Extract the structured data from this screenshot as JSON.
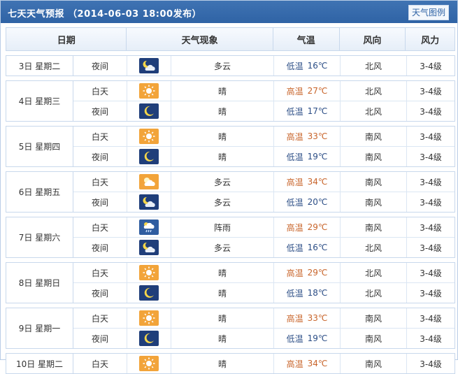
{
  "header": {
    "title": "七天天气预报 （2014-06-03 18:00发布）",
    "legend_button": "天气图例"
  },
  "columns": [
    "日期",
    "天气现象",
    "气温",
    "风向",
    "风力"
  ],
  "days": [
    {
      "date": "3日  星期二",
      "rows": [
        {
          "period": "夜间",
          "icon": "partly-cloudy-night-icon",
          "weather": "多云",
          "temp_label": "低温",
          "temp": "16℃",
          "wind": "北风",
          "force": "3-4级"
        }
      ]
    },
    {
      "date": "4日  星期三",
      "rows": [
        {
          "period": "白天",
          "icon": "sun-icon",
          "weather": "晴",
          "temp_label": "高温",
          "temp": "27℃",
          "wind": "北风",
          "force": "3-4级"
        },
        {
          "period": "夜间",
          "icon": "moon-icon",
          "weather": "晴",
          "temp_label": "低温",
          "temp": "17℃",
          "wind": "北风",
          "force": "3-4级"
        }
      ]
    },
    {
      "date": "5日  星期四",
      "rows": [
        {
          "period": "白天",
          "icon": "sun-icon",
          "weather": "晴",
          "temp_label": "高温",
          "temp": "33℃",
          "wind": "南风",
          "force": "3-4级"
        },
        {
          "period": "夜间",
          "icon": "moon-icon",
          "weather": "晴",
          "temp_label": "低温",
          "temp": "19℃",
          "wind": "南风",
          "force": "3-4级"
        }
      ]
    },
    {
      "date": "6日  星期五",
      "rows": [
        {
          "period": "白天",
          "icon": "partly-cloudy-day-icon",
          "weather": "多云",
          "temp_label": "高温",
          "temp": "34℃",
          "wind": "南风",
          "force": "3-4级"
        },
        {
          "period": "夜间",
          "icon": "partly-cloudy-night-icon",
          "weather": "多云",
          "temp_label": "低温",
          "temp": "20℃",
          "wind": "南风",
          "force": "3-4级"
        }
      ]
    },
    {
      "date": "7日  星期六",
      "rows": [
        {
          "period": "白天",
          "icon": "shower-icon",
          "weather": "阵雨",
          "temp_label": "高温",
          "temp": "29℃",
          "wind": "南风",
          "force": "3-4级"
        },
        {
          "period": "夜间",
          "icon": "partly-cloudy-night-icon",
          "weather": "多云",
          "temp_label": "低温",
          "temp": "16℃",
          "wind": "北风",
          "force": "3-4级"
        }
      ]
    },
    {
      "date": "8日  星期日",
      "rows": [
        {
          "period": "白天",
          "icon": "sun-icon",
          "weather": "晴",
          "temp_label": "高温",
          "temp": "29℃",
          "wind": "北风",
          "force": "3-4级"
        },
        {
          "period": "夜间",
          "icon": "moon-icon",
          "weather": "晴",
          "temp_label": "低温",
          "temp": "18℃",
          "wind": "北风",
          "force": "3-4级"
        }
      ]
    },
    {
      "date": "9日  星期一",
      "rows": [
        {
          "period": "白天",
          "icon": "sun-icon",
          "weather": "晴",
          "temp_label": "高温",
          "temp": "33℃",
          "wind": "南风",
          "force": "3-4级"
        },
        {
          "period": "夜间",
          "icon": "moon-icon",
          "weather": "晴",
          "temp_label": "低温",
          "temp": "19℃",
          "wind": "南风",
          "force": "3-4级"
        }
      ]
    },
    {
      "date": "10日  星期二",
      "rows": [
        {
          "period": "白天",
          "icon": "sun-icon",
          "weather": "晴",
          "temp_label": "高温",
          "temp": "34℃",
          "wind": "南风",
          "force": "3-4级"
        }
      ]
    }
  ],
  "colors": {
    "header_bg": "#2f63a5",
    "high_temp": "#c8642a",
    "low_temp": "#2c4e86",
    "sun_icon_bg": "#f2a43a",
    "night_icon_bg": "#1f3e7a"
  }
}
